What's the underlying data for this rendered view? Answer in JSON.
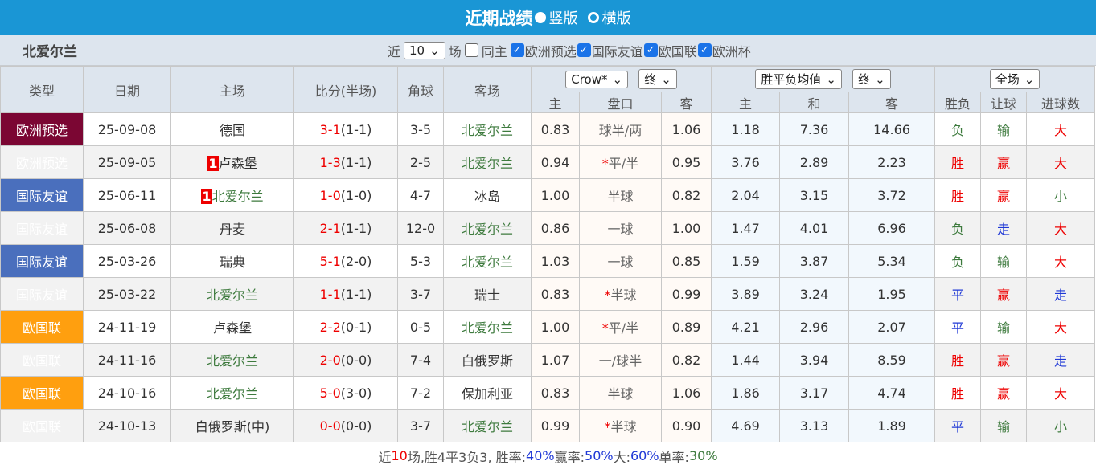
{
  "header": {
    "title": "近期战绩",
    "view_vertical": "竖版",
    "view_horizontal": "横版",
    "selected_view": "竖版"
  },
  "filter": {
    "team": "北爱尔兰",
    "recent_label": "近",
    "count": "10",
    "games_label": "场",
    "same_home": "同主",
    "same_home_checked": false,
    "competitions": [
      {
        "label": "欧洲预选",
        "checked": true
      },
      {
        "label": "国际友谊",
        "checked": true
      },
      {
        "label": "欧国联",
        "checked": true
      },
      {
        "label": "欧洲杯",
        "checked": true
      }
    ]
  },
  "columns": {
    "type": "类型",
    "date": "日期",
    "home": "主场",
    "score": "比分(半场)",
    "corner": "角球",
    "away": "客场",
    "ah_company": "Crow*",
    "ah_stage": "终",
    "ah_home": "主",
    "ah_line": "盘口",
    "ah_away": "客",
    "eu_company": "胜平负均值",
    "eu_stage": "终",
    "eu_home": "主",
    "eu_draw": "和",
    "eu_away": "客",
    "period": "全场",
    "result": "胜负",
    "handicap": "让球",
    "goals": "进球数"
  },
  "colors": {
    "欧洲预选": "#7b0633",
    "国际友谊": "#4a6fbd",
    "欧国联": "#ff9f0f",
    "win": "#ee0000",
    "loss": "#3d7a3d",
    "draw": "#1f38d6"
  },
  "rows": [
    {
      "type": "欧洲预选",
      "tc": "t1",
      "date": "25-09-08",
      "home": "德国",
      "home_badge": "",
      "home_team": false,
      "ft": "3-1",
      "ht": "(1-1)",
      "corner": "3-5",
      "away": "北爱尔兰",
      "away_team": true,
      "ah_h": "0.83",
      "ah_line": "球半/两",
      "star": false,
      "ah_a": "1.06",
      "eu_h": "1.18",
      "eu_d": "7.36",
      "eu_a": "14.66",
      "res": "负",
      "hc": "输",
      "goals": "大"
    },
    {
      "type": "欧洲预选",
      "tc": "t1",
      "date": "25-09-05",
      "home": "卢森堡",
      "home_badge": "1",
      "home_team": false,
      "ft": "1-3",
      "ht": "(1-1)",
      "corner": "2-5",
      "away": "北爱尔兰",
      "away_team": true,
      "ah_h": "0.94",
      "ah_line": "平/半",
      "star": true,
      "ah_a": "0.95",
      "eu_h": "3.76",
      "eu_d": "2.89",
      "eu_a": "2.23",
      "res": "胜",
      "hc": "赢",
      "goals": "大"
    },
    {
      "type": "国际友谊",
      "tc": "t2",
      "date": "25-06-11",
      "home": "北爱尔兰",
      "home_badge": "1",
      "home_team": true,
      "ft": "1-0",
      "ht": "(1-0)",
      "corner": "4-7",
      "away": "冰岛",
      "away_team": false,
      "ah_h": "1.00",
      "ah_line": "半球",
      "star": false,
      "ah_a": "0.82",
      "eu_h": "2.04",
      "eu_d": "3.15",
      "eu_a": "3.72",
      "res": "胜",
      "hc": "赢",
      "goals": "小"
    },
    {
      "type": "国际友谊",
      "tc": "t2",
      "date": "25-06-08",
      "home": "丹麦",
      "home_badge": "",
      "home_team": false,
      "ft": "2-1",
      "ht": "(1-1)",
      "corner": "12-0",
      "away": "北爱尔兰",
      "away_team": true,
      "ah_h": "0.86",
      "ah_line": "一球",
      "star": false,
      "ah_a": "1.00",
      "eu_h": "1.47",
      "eu_d": "4.01",
      "eu_a": "6.96",
      "res": "负",
      "hc": "走",
      "goals": "大"
    },
    {
      "type": "国际友谊",
      "tc": "t2",
      "date": "25-03-26",
      "home": "瑞典",
      "home_badge": "",
      "home_team": false,
      "ft": "5-1",
      "ht": "(2-0)",
      "corner": "5-3",
      "away": "北爱尔兰",
      "away_team": true,
      "ah_h": "1.03",
      "ah_line": "一球",
      "star": false,
      "ah_a": "0.85",
      "eu_h": "1.59",
      "eu_d": "3.87",
      "eu_a": "5.34",
      "res": "负",
      "hc": "输",
      "goals": "大"
    },
    {
      "type": "国际友谊",
      "tc": "t2",
      "date": "25-03-22",
      "home": "北爱尔兰",
      "home_badge": "",
      "home_team": true,
      "ft": "1-1",
      "ht": "(1-1)",
      "corner": "3-7",
      "away": "瑞士",
      "away_team": false,
      "ah_h": "0.83",
      "ah_line": "半球",
      "star": true,
      "ah_a": "0.99",
      "eu_h": "3.89",
      "eu_d": "3.24",
      "eu_a": "1.95",
      "res": "平",
      "hc": "赢",
      "goals": "走"
    },
    {
      "type": "欧国联",
      "tc": "t3",
      "date": "24-11-19",
      "home": "卢森堡",
      "home_badge": "",
      "home_team": false,
      "ft": "2-2",
      "ht": "(0-1)",
      "corner": "0-5",
      "away": "北爱尔兰",
      "away_team": true,
      "ah_h": "1.00",
      "ah_line": "平/半",
      "star": true,
      "ah_a": "0.89",
      "eu_h": "4.21",
      "eu_d": "2.96",
      "eu_a": "2.07",
      "res": "平",
      "hc": "输",
      "goals": "大"
    },
    {
      "type": "欧国联",
      "tc": "t3",
      "date": "24-11-16",
      "home": "北爱尔兰",
      "home_badge": "",
      "home_team": true,
      "ft": "2-0",
      "ht": "(0-0)",
      "corner": "7-4",
      "away": "白俄罗斯",
      "away_team": false,
      "ah_h": "1.07",
      "ah_line": "一/球半",
      "star": false,
      "ah_a": "0.82",
      "eu_h": "1.44",
      "eu_d": "3.94",
      "eu_a": "8.59",
      "res": "胜",
      "hc": "赢",
      "goals": "走"
    },
    {
      "type": "欧国联",
      "tc": "t3",
      "date": "24-10-16",
      "home": "北爱尔兰",
      "home_badge": "",
      "home_team": true,
      "ft": "5-0",
      "ht": "(3-0)",
      "corner": "7-2",
      "away": "保加利亚",
      "away_team": false,
      "ah_h": "0.83",
      "ah_line": "半球",
      "star": false,
      "ah_a": "1.06",
      "eu_h": "1.86",
      "eu_d": "3.17",
      "eu_a": "4.74",
      "res": "胜",
      "hc": "赢",
      "goals": "大"
    },
    {
      "type": "欧国联",
      "tc": "t3",
      "date": "24-10-13",
      "home": "白俄罗斯(中)",
      "home_badge": "",
      "home_team": false,
      "ft": "0-0",
      "ht": "(0-0)",
      "corner": "3-7",
      "away": "北爱尔兰",
      "away_team": true,
      "ah_h": "0.99",
      "ah_line": "半球",
      "star": true,
      "ah_a": "0.90",
      "eu_h": "4.69",
      "eu_d": "3.13",
      "eu_a": "1.89",
      "res": "平",
      "hc": "输",
      "goals": "小"
    }
  ],
  "summary": {
    "p1": "近",
    "n": "10",
    "p2": "场,胜4平3负3, 胜率:",
    "win_rate": "40%",
    "p3": " 赢率:",
    "cover_rate": "50%",
    "p4": " 大:",
    "over_rate": "60%",
    "p5": " 单率:",
    "odd_rate": "30%"
  }
}
